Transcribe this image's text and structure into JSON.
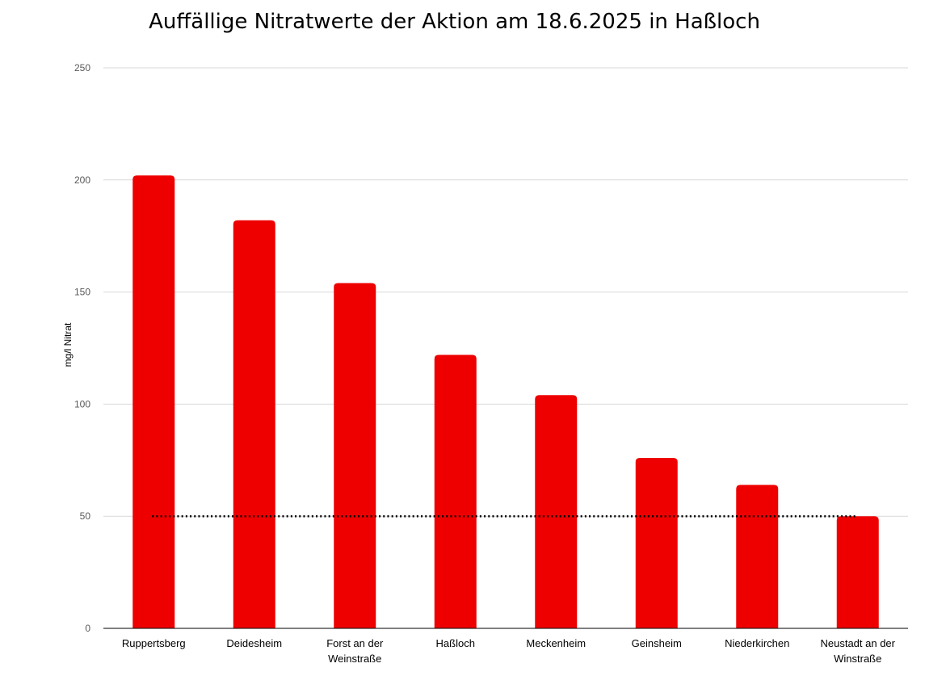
{
  "chart_data": {
    "type": "bar",
    "title": "Auffällige Nitratwerte der Aktion am 18.6.2025 in Haßloch",
    "xlabel": "",
    "ylabel": "mg/l Nitrat",
    "ylim": [
      0,
      250
    ],
    "yticks": [
      0,
      50,
      100,
      150,
      200,
      250
    ],
    "grid": true,
    "legend": "none",
    "categories": [
      "Ruppertsberg",
      "Deidesheim",
      "Forst an der Weinstraße",
      "Haßloch",
      "Meckenheim",
      "Geinsheim",
      "Niederkirchen",
      "Neustadt an der Winstraße"
    ],
    "category_lines": [
      [
        "Ruppertsberg"
      ],
      [
        "Deidesheim"
      ],
      [
        "Forst an der",
        "Weinstraße"
      ],
      [
        "Haßloch"
      ],
      [
        "Meckenheim"
      ],
      [
        "Geinsheim"
      ],
      [
        "Niederkirchen"
      ],
      [
        "Neustadt an der",
        "Winstraße"
      ]
    ],
    "series": [
      {
        "values": [
          202,
          182,
          154,
          122,
          104,
          76,
          64,
          50
        ],
        "color": "#ee0000"
      }
    ],
    "reference_line": {
      "value": 50,
      "style": "dotted",
      "color": "#000000"
    },
    "colors": {
      "grid": "#d9d9d9",
      "axis": "#000000",
      "tick_label": "#595959"
    }
  }
}
